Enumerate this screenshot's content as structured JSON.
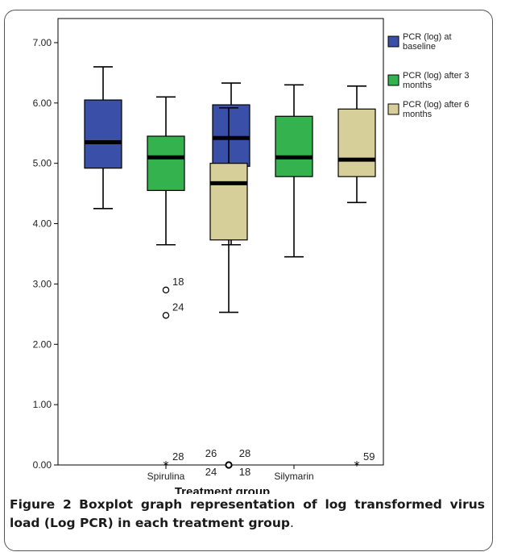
{
  "caption": {
    "label": "Figure 2",
    "text": "Boxplot graph representation of log transformed virus load (Log PCR) in each treatment group",
    "end": "."
  },
  "chart_data": {
    "type": "boxplot",
    "xlabel": "Treatment group",
    "ylabel": "",
    "ylim": [
      0,
      7.4
    ],
    "yticks": [
      "0.00",
      "1.00",
      "2.00",
      "3.00",
      "4.00",
      "5.00",
      "6.00",
      "7.00"
    ],
    "categories": [
      "Spirulina",
      "Silymarin"
    ],
    "legend_position": "right",
    "series": [
      {
        "name": "PCR (log) at baseline",
        "color": "#3a4fa8",
        "boxes": [
          {
            "category": "Spirulina",
            "whisker_low": 4.25,
            "q1": 4.92,
            "median": 5.35,
            "q3": 6.05,
            "whisker_high": 6.6,
            "outliers": []
          },
          {
            "category": "Silymarin",
            "whisker_low": 3.65,
            "q1": 4.95,
            "median": 5.42,
            "q3": 5.97,
            "whisker_high": 6.33,
            "outliers": []
          }
        ]
      },
      {
        "name": "PCR (log) after 3 months",
        "color": "#33b24d",
        "boxes": [
          {
            "category": "Spirulina",
            "whisker_low": 3.65,
            "q1": 4.55,
            "median": 5.1,
            "q3": 5.45,
            "whisker_high": 6.1,
            "outliers": [
              {
                "value": 2.9,
                "marker": "circle",
                "labels": [
                  "18"
                ]
              },
              {
                "value": 2.48,
                "marker": "circle",
                "labels": [
                  "24"
                ]
              },
              {
                "value": 0.0,
                "marker": "star",
                "labels": [
                  "28"
                ]
              }
            ]
          },
          {
            "category": "Silymarin",
            "whisker_low": 3.45,
            "q1": 4.78,
            "median": 5.1,
            "q3": 5.78,
            "whisker_high": 6.3,
            "outliers": []
          }
        ]
      },
      {
        "name": "PCR (log) after 6 months",
        "color": "#d6cf9a",
        "boxes": [
          {
            "category": "Spirulina",
            "whisker_low": 2.53,
            "q1": 3.73,
            "median": 4.67,
            "q3": 5.0,
            "whisker_high": 5.92,
            "outliers": [
              {
                "value": 0.0,
                "marker": "circle",
                "labels": [
                  "26",
                  "28",
                  "24",
                  "18"
                ]
              }
            ]
          },
          {
            "category": "Silymarin",
            "whisker_low": 4.35,
            "q1": 4.78,
            "median": 5.06,
            "q3": 5.9,
            "whisker_high": 6.28,
            "outliers": [
              {
                "value": 0.0,
                "marker": "star",
                "labels": [
                  "59"
                ]
              }
            ]
          }
        ]
      }
    ]
  }
}
